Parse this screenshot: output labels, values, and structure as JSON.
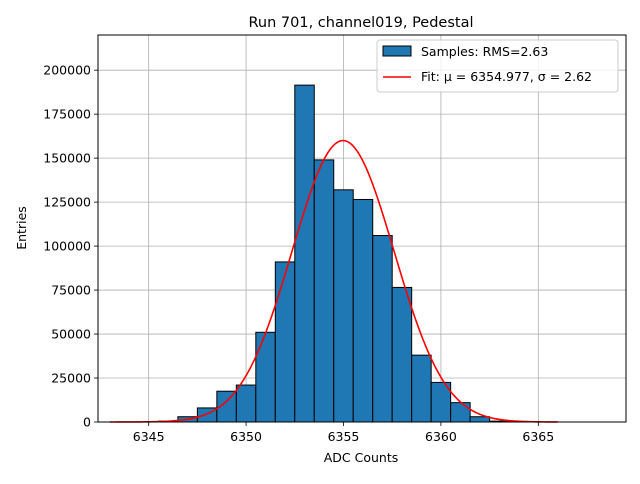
{
  "chart_data": {
    "type": "bar",
    "title": "Run 701, channel019, Pedestal",
    "xlabel": "ADC Counts",
    "ylabel": "Entries",
    "xlim": [
      6342.4,
      6369.5
    ],
    "ylim": [
      0,
      220000
    ],
    "grid": true,
    "legend_position": "top-right",
    "x_ticks": [
      6345,
      6350,
      6355,
      6360,
      6365
    ],
    "y_ticks": [
      0,
      25000,
      50000,
      75000,
      100000,
      125000,
      150000,
      175000,
      200000
    ],
    "bin_width": 1,
    "bins": [
      {
        "x": 6346,
        "count": 500
      },
      {
        "x": 6347,
        "count": 3000
      },
      {
        "x": 6348,
        "count": 8000
      },
      {
        "x": 6349,
        "count": 17500
      },
      {
        "x": 6350,
        "count": 21000
      },
      {
        "x": 6351,
        "count": 51000
      },
      {
        "x": 6352,
        "count": 91000
      },
      {
        "x": 6353,
        "count": 191500
      },
      {
        "x": 6354,
        "count": 149000
      },
      {
        "x": 6355,
        "count": 132000
      },
      {
        "x": 6356,
        "count": 126500
      },
      {
        "x": 6357,
        "count": 106000
      },
      {
        "x": 6358,
        "count": 76500
      },
      {
        "x": 6359,
        "count": 38000
      },
      {
        "x": 6360,
        "count": 22500
      },
      {
        "x": 6361,
        "count": 11000
      },
      {
        "x": 6362,
        "count": 3000
      },
      {
        "x": 6363,
        "count": 500
      }
    ],
    "fit": {
      "mu": 6354.977,
      "sigma": 2.62,
      "amplitude": 160000,
      "x_range": [
        6343,
        6366
      ]
    },
    "series": [
      {
        "name": "Samples: RMS=2.63",
        "kind": "histogram",
        "color": "#1f77b4"
      },
      {
        "name": "Fit: μ = 6354.977, σ = 2.62",
        "kind": "line",
        "color": "#ff0000"
      }
    ]
  }
}
